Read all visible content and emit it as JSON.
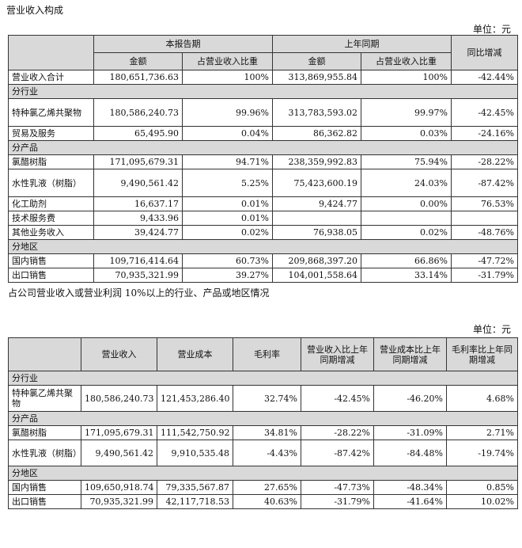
{
  "title": "营业收入构成",
  "unit_label": "单位：元",
  "table1": {
    "header_current": "本报告期",
    "header_prior": "上年同期",
    "header_yoy": "同比增减",
    "sub_amount": "金额",
    "sub_ratio": "占营业收入比重",
    "total": {
      "name": "营业收入合计",
      "cur_amt": "180,651,736.63",
      "cur_pct": "100%",
      "pri_amt": "313,869,955.84",
      "pri_pct": "100%",
      "yoy": "-42.44%"
    },
    "sections": {
      "industry": "分行业",
      "product": "分产品",
      "region": "分地区"
    },
    "rows": [
      {
        "name": "特种氯乙烯共聚物",
        "cur_amt": "180,586,240.73",
        "cur_pct": "99.96%",
        "pri_amt": "313,783,593.02",
        "pri_pct": "99.97%",
        "yoy": "-42.45%"
      },
      {
        "name": "贸易及服务",
        "cur_amt": "65,495.90",
        "cur_pct": "0.04%",
        "pri_amt": "86,362.82",
        "pri_pct": "0.03%",
        "yoy": "-24.16%"
      },
      {
        "name": "氯醋树脂",
        "cur_amt": "171,095,679.31",
        "cur_pct": "94.71%",
        "pri_amt": "238,359,992.83",
        "pri_pct": "75.94%",
        "yoy": "-28.22%"
      },
      {
        "name": "水性乳液（树脂）",
        "cur_amt": "9,490,561.42",
        "cur_pct": "5.25%",
        "pri_amt": "75,423,600.19",
        "pri_pct": "24.03%",
        "yoy": "-87.42%"
      },
      {
        "name": "化工助剂",
        "cur_amt": "16,637.17",
        "cur_pct": "0.01%",
        "pri_amt": "9,424.77",
        "pri_pct": "0.00%",
        "yoy": "76.53%"
      },
      {
        "name": "技术服务费",
        "cur_amt": "9,433.96",
        "cur_pct": "0.01%",
        "pri_amt": "",
        "pri_pct": "",
        "yoy": ""
      },
      {
        "name": "其他业务收入",
        "cur_amt": "39,424.77",
        "cur_pct": "0.02%",
        "pri_amt": "76,938.05",
        "pri_pct": "0.02%",
        "yoy": "-48.76%"
      },
      {
        "name": "国内销售",
        "cur_amt": "109,716,414.64",
        "cur_pct": "60.73%",
        "pri_amt": "209,868,397.20",
        "pri_pct": "66.86%",
        "yoy": "-47.72%"
      },
      {
        "name": "出口销售",
        "cur_amt": "70,935,321.99",
        "cur_pct": "39.27%",
        "pri_amt": "104,001,558.64",
        "pri_pct": "33.14%",
        "yoy": "-31.79%"
      }
    ]
  },
  "mid_text": "占公司营业收入或营业利润 10%以上的行业、产品或地区情况",
  "table2": {
    "headers": [
      "",
      "营业收入",
      "营业成本",
      "毛利率",
      "营业收入比上年同期增减",
      "营业成本比上年同期增减",
      "毛利率比上年同期增减"
    ],
    "sections": {
      "industry": "分行业",
      "product": "分产品",
      "region": "分地区"
    },
    "rows": [
      {
        "name": "特种氯乙烯共聚物",
        "rev": "180,586,240.73",
        "cost": "121,453,286.40",
        "gm": "32.74%",
        "rev_chg": "-42.45%",
        "cost_chg": "-46.20%",
        "gm_chg": "4.68%"
      },
      {
        "name": "氯醋树脂",
        "rev": "171,095,679.31",
        "cost": "111,542,750.92",
        "gm": "34.81%",
        "rev_chg": "-28.22%",
        "cost_chg": "-31.09%",
        "gm_chg": "2.71%"
      },
      {
        "name": "水性乳液（树脂）",
        "rev": "9,490,561.42",
        "cost": "9,910,535.48",
        "gm": "-4.43%",
        "rev_chg": "-87.42%",
        "cost_chg": "-84.48%",
        "gm_chg": "-19.74%"
      },
      {
        "name": "国内销售",
        "rev": "109,650,918.74",
        "cost": "79,335,567.87",
        "gm": "27.65%",
        "rev_chg": "-47.73%",
        "cost_chg": "-48.34%",
        "gm_chg": "0.85%"
      },
      {
        "name": "出口销售",
        "rev": "70,935,321.99",
        "cost": "42,117,718.53",
        "gm": "40.63%",
        "rev_chg": "-31.79%",
        "cost_chg": "-41.64%",
        "gm_chg": "10.02%"
      }
    ]
  }
}
